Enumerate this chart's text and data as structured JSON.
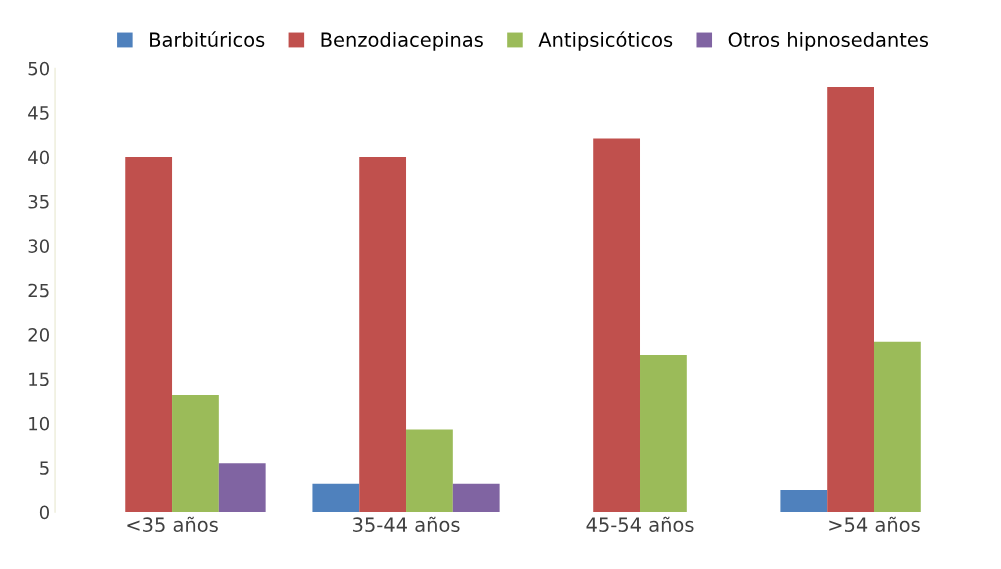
{
  "chart_data": {
    "type": "bar",
    "categories": [
      "<35 años",
      "35-44 años",
      "45-54 años",
      ">54 años"
    ],
    "series": [
      {
        "name": "Barbitúricos",
        "color": "#4f81bd",
        "values": [
          0,
          3.2,
          0,
          2.5
        ]
      },
      {
        "name": "Benzodiacepinas",
        "color": "#c0504d",
        "values": [
          40,
          40,
          42.1,
          47.9
        ]
      },
      {
        "name": "Antipsicóticos",
        "color": "#9bbb59",
        "values": [
          13.2,
          9.3,
          17.7,
          19.2
        ]
      },
      {
        "name": "Otros hipnosedantes",
        "color": "#8064a2",
        "values": [
          5.5,
          3.2,
          0,
          0
        ]
      }
    ],
    "ylim": [
      0,
      50
    ],
    "yticks": [
      0,
      5,
      10,
      15,
      20,
      25,
      30,
      35,
      40,
      45,
      50
    ],
    "grid": false,
    "legend": "top"
  }
}
